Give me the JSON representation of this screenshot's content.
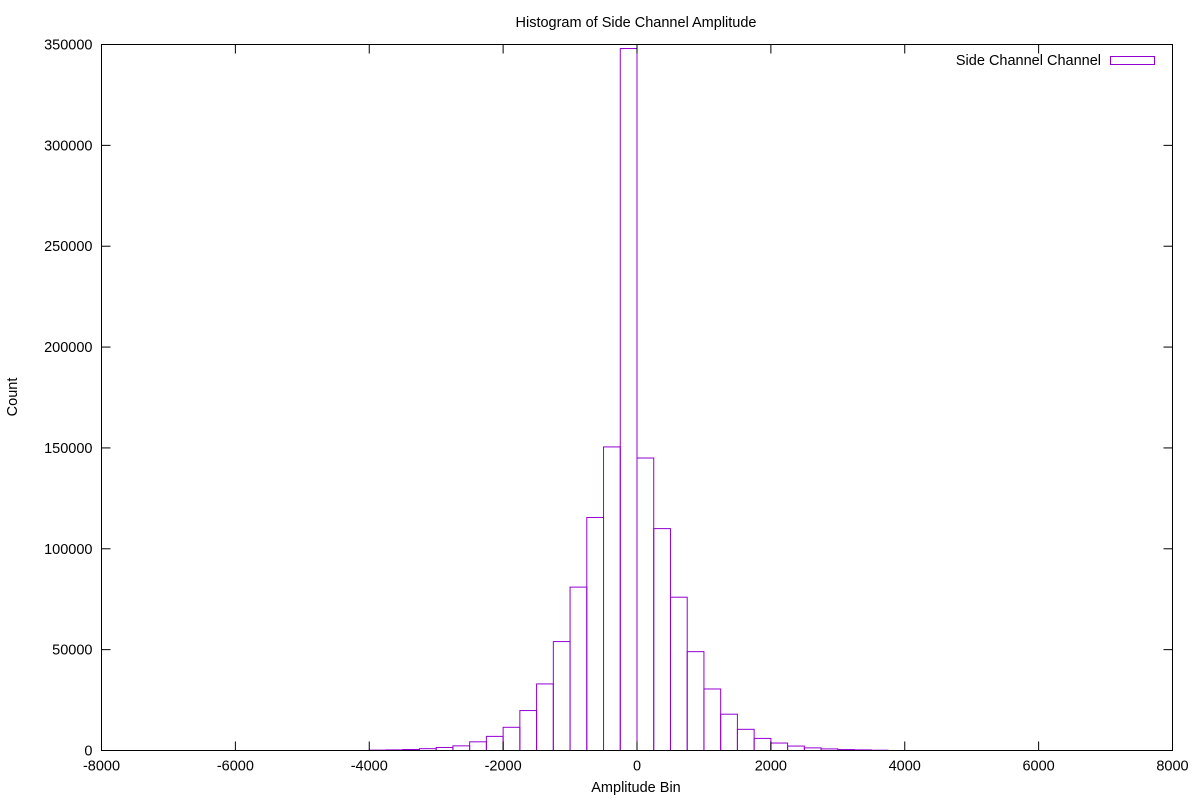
{
  "chart_data": {
    "type": "bar",
    "title": "Histogram of Side Channel Amplitude",
    "xlabel": "Amplitude Bin",
    "ylabel": "Count",
    "xlim": [
      -8000,
      8000
    ],
    "ylim": [
      0,
      350000
    ],
    "xticks": [
      -8000,
      -6000,
      -4000,
      -2000,
      0,
      2000,
      4000,
      6000,
      8000
    ],
    "yticks": [
      0,
      50000,
      100000,
      150000,
      200000,
      250000,
      300000,
      350000
    ],
    "bin_width": 250,
    "grid": false,
    "legend_position": "top-right",
    "series": [
      {
        "name": "Side Channel Channel",
        "color": "#9400d3",
        "bins": [
          {
            "x": -3875,
            "y": 200
          },
          {
            "x": -3625,
            "y": 300
          },
          {
            "x": -3375,
            "y": 500
          },
          {
            "x": -3125,
            "y": 900
          },
          {
            "x": -2875,
            "y": 1500
          },
          {
            "x": -2625,
            "y": 2300
          },
          {
            "x": -2375,
            "y": 4300
          },
          {
            "x": -2125,
            "y": 7000
          },
          {
            "x": -1875,
            "y": 11500
          },
          {
            "x": -1625,
            "y": 19800
          },
          {
            "x": -1375,
            "y": 33000
          },
          {
            "x": -1125,
            "y": 54000
          },
          {
            "x": -875,
            "y": 81000
          },
          {
            "x": -625,
            "y": 115500
          },
          {
            "x": -375,
            "y": 150500
          },
          {
            "x": -125,
            "y": 348000
          },
          {
            "x": 125,
            "y": 145000
          },
          {
            "x": 375,
            "y": 110000
          },
          {
            "x": 625,
            "y": 76000
          },
          {
            "x": 875,
            "y": 49000
          },
          {
            "x": 1125,
            "y": 30500
          },
          {
            "x": 1375,
            "y": 18000
          },
          {
            "x": 1625,
            "y": 10500
          },
          {
            "x": 1875,
            "y": 6000
          },
          {
            "x": 2125,
            "y": 3700
          },
          {
            "x": 2375,
            "y": 2200
          },
          {
            "x": 2625,
            "y": 1300
          },
          {
            "x": 2875,
            "y": 800
          },
          {
            "x": 3125,
            "y": 450
          },
          {
            "x": 3375,
            "y": 300
          },
          {
            "x": 3625,
            "y": 150
          }
        ]
      }
    ]
  }
}
